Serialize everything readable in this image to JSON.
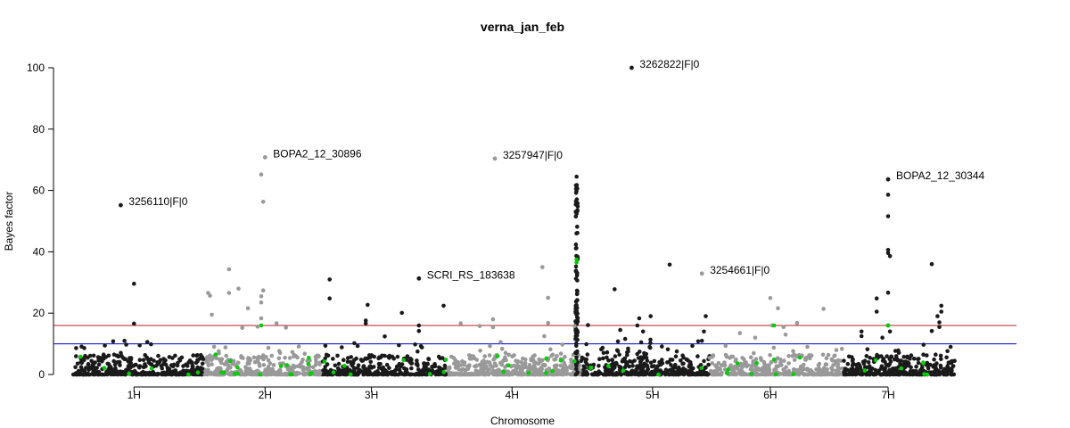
{
  "chart_data": {
    "type": "scatter",
    "title": "verna_jan_feb",
    "xlabel": "Chromosome",
    "ylabel": "Bayes factor",
    "ylim": [
      0,
      100
    ],
    "yticks": [
      0,
      20,
      40,
      60,
      80,
      100
    ],
    "xticks": [
      "1H",
      "2H",
      "3H",
      "4H",
      "5H",
      "6H",
      "7H"
    ],
    "grid": false,
    "legend": "none",
    "thresholds": [
      {
        "value": 16,
        "color": "#b22222"
      },
      {
        "value": 10,
        "color": "#0000cd"
      }
    ],
    "chromosomes": [
      {
        "name": "1H",
        "start": 0,
        "end": 7.0,
        "color": "#1a1a1a"
      },
      {
        "name": "2H",
        "start": 7.0,
        "end": 13.2,
        "color": "#999999"
      },
      {
        "name": "3H",
        "start": 13.2,
        "end": 19.8,
        "color": "#1a1a1a"
      },
      {
        "name": "4H",
        "start": 19.8,
        "end": 26.8,
        "color": "#999999"
      },
      {
        "name": "5H",
        "start": 26.8,
        "end": 33.6,
        "color": "#1a1a1a"
      },
      {
        "name": "6H",
        "start": 33.6,
        "end": 40.6,
        "color": "#999999"
      },
      {
        "name": "7H",
        "start": 40.6,
        "end": 46.6,
        "color": "#1a1a1a"
      }
    ],
    "tick_positions": [
      3.3,
      10.2,
      15.8,
      23.2,
      30.6,
      36.8,
      43.0
    ],
    "highlight_color": "#00cc00",
    "annotations": [
      {
        "label": "3262822|F|0",
        "x": 29.5,
        "y": 100.0,
        "color": "#1a1a1a"
      },
      {
        "label": "BOPA2_12_30896",
        "x": 10.2,
        "y": 70.8,
        "color": "#999999"
      },
      {
        "label": "3257947|F|0",
        "x": 22.3,
        "y": 70.4,
        "color": "#999999"
      },
      {
        "label": "BOPA2_12_30344",
        "x": 43.0,
        "y": 63.6,
        "color": "#1a1a1a"
      },
      {
        "label": "3256110|F|0",
        "x": 2.6,
        "y": 55.2,
        "color": "#1a1a1a"
      },
      {
        "label": "SCRI_RS_183638",
        "x": 18.3,
        "y": 31.3,
        "color": "#1a1a1a"
      },
      {
        "label": "3254661|F|0",
        "x": 33.2,
        "y": 32.9,
        "color": "#999999"
      }
    ],
    "peak_points": [
      {
        "x": 3.3,
        "y": 29.6
      },
      {
        "x": 3.3,
        "y": 16.6
      },
      {
        "x": 2.2,
        "y": 10.8
      },
      {
        "x": 2.8,
        "y": 11.0
      },
      {
        "x": 4.0,
        "y": 10.6
      },
      {
        "x": 3.6,
        "y": 9.5
      },
      {
        "x": 10.0,
        "y": 65.2
      },
      {
        "x": 10.1,
        "y": 56.3
      },
      {
        "x": 8.3,
        "y": 34.3
      },
      {
        "x": 8.3,
        "y": 26.6
      },
      {
        "x": 8.8,
        "y": 28.0
      },
      {
        "x": 7.2,
        "y": 26.6
      },
      {
        "x": 7.3,
        "y": 25.7
      },
      {
        "x": 10.1,
        "y": 27.4
      },
      {
        "x": 10.0,
        "y": 25.5
      },
      {
        "x": 10.0,
        "y": 23.5
      },
      {
        "x": 7.4,
        "y": 19.5
      },
      {
        "x": 9.3,
        "y": 21.6
      },
      {
        "x": 10.8,
        "y": 16.7
      },
      {
        "x": 11.3,
        "y": 15.3
      },
      {
        "x": 10.0,
        "y": 18.3
      },
      {
        "x": 9.8,
        "y": 15.6
      },
      {
        "x": 9.0,
        "y": 15.2
      },
      {
        "x": 13.6,
        "y": 31.0
      },
      {
        "x": 13.6,
        "y": 24.8
      },
      {
        "x": 15.6,
        "y": 22.7
      },
      {
        "x": 15.5,
        "y": 17.6
      },
      {
        "x": 15.5,
        "y": 16.7
      },
      {
        "x": 17.4,
        "y": 20.1
      },
      {
        "x": 18.1,
        "y": 9.8
      },
      {
        "x": 18.3,
        "y": 16.0
      },
      {
        "x": 18.3,
        "y": 14.2
      },
      {
        "x": 16.5,
        "y": 12.4
      },
      {
        "x": 19.6,
        "y": 22.4
      },
      {
        "x": 14.9,
        "y": 10.2
      },
      {
        "x": 20.5,
        "y": 16.7
      },
      {
        "x": 21.5,
        "y": 15.8
      },
      {
        "x": 22.2,
        "y": 18.0
      },
      {
        "x": 22.2,
        "y": 15.4
      },
      {
        "x": 24.8,
        "y": 35.0
      },
      {
        "x": 25.1,
        "y": 25.0
      },
      {
        "x": 25.1,
        "y": 16.8
      },
      {
        "x": 24.9,
        "y": 12.5
      },
      {
        "x": 22.6,
        "y": 10.6
      },
      {
        "x": 27.2,
        "y": 16.1
      },
      {
        "x": 26.5,
        "y": 15.8
      },
      {
        "x": 28.6,
        "y": 27.8
      },
      {
        "x": 29.9,
        "y": 18.3
      },
      {
        "x": 30.5,
        "y": 19.0
      },
      {
        "x": 29.8,
        "y": 16.0
      },
      {
        "x": 31.5,
        "y": 35.8
      },
      {
        "x": 28.9,
        "y": 14.5
      },
      {
        "x": 30.0,
        "y": 10.5
      },
      {
        "x": 33.0,
        "y": 10.8
      },
      {
        "x": 30.1,
        "y": 14.0
      },
      {
        "x": 33.4,
        "y": 19.0
      },
      {
        "x": 33.3,
        "y": 14.0
      },
      {
        "x": 33.2,
        "y": 11.0
      },
      {
        "x": 36.8,
        "y": 24.9
      },
      {
        "x": 37.2,
        "y": 21.6
      },
      {
        "x": 36.9,
        "y": 16.0
      },
      {
        "x": 37.5,
        "y": 15.5
      },
      {
        "x": 38.2,
        "y": 16.8
      },
      {
        "x": 37.6,
        "y": 13.0
      },
      {
        "x": 39.6,
        "y": 21.4
      },
      {
        "x": 35.2,
        "y": 13.5
      },
      {
        "x": 36.0,
        "y": 12.0
      },
      {
        "x": 41.6,
        "y": 14.0
      },
      {
        "x": 41.6,
        "y": 12.5
      },
      {
        "x": 42.4,
        "y": 24.8
      },
      {
        "x": 42.4,
        "y": 20.5
      },
      {
        "x": 42.7,
        "y": 12.0
      },
      {
        "x": 43.0,
        "y": 58.6
      },
      {
        "x": 43.0,
        "y": 51.6
      },
      {
        "x": 43.0,
        "y": 40.6
      },
      {
        "x": 43.0,
        "y": 39.6
      },
      {
        "x": 43.1,
        "y": 38.6
      },
      {
        "x": 43.0,
        "y": 26.7
      },
      {
        "x": 43.0,
        "y": 16.0
      },
      {
        "x": 43.1,
        "y": 14.0
      },
      {
        "x": 45.3,
        "y": 36.0
      },
      {
        "x": 45.8,
        "y": 22.4
      },
      {
        "x": 45.8,
        "y": 20.5
      },
      {
        "x": 45.6,
        "y": 19.0
      },
      {
        "x": 45.7,
        "y": 17.0
      },
      {
        "x": 45.7,
        "y": 15.5
      },
      {
        "x": 45.3,
        "y": 14.2
      }
    ],
    "peak_spike_4H": {
      "x": 26.6,
      "top": 64.5
    },
    "peak_spike_5H": {
      "x": 29.6,
      "top": 20.0
    }
  }
}
